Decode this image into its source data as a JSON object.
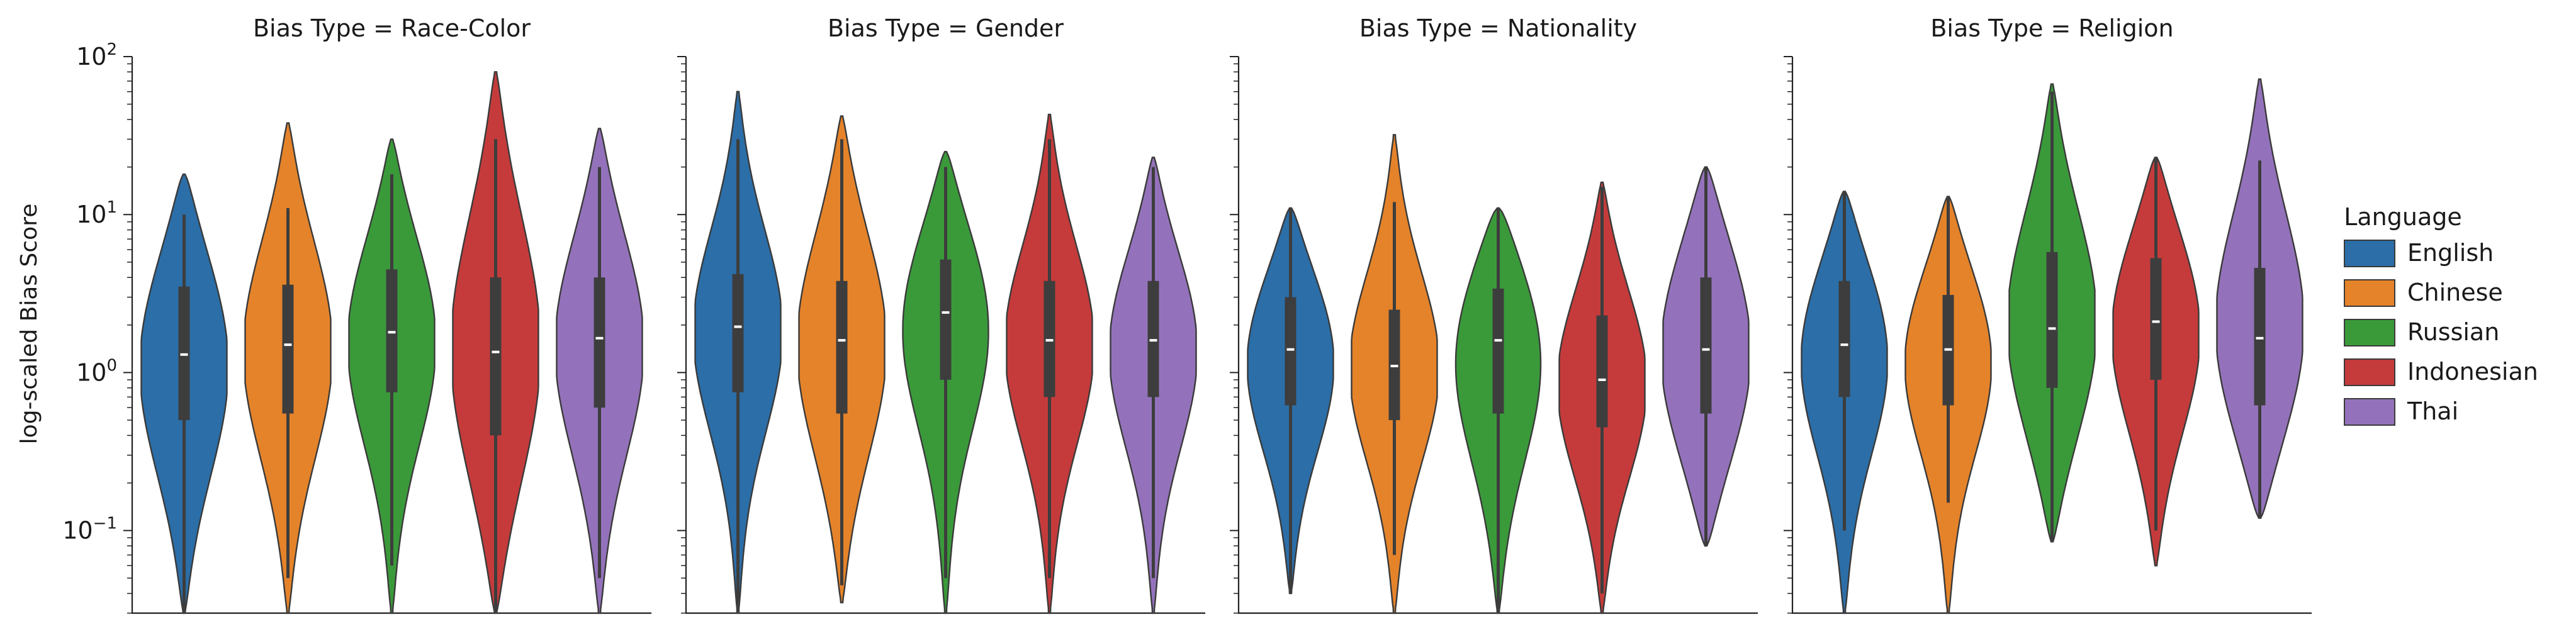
{
  "chart_data": {
    "type": "violin",
    "ylabel": "log-scaled Bias Score",
    "yscale": "log",
    "ylim": [
      0.03,
      100
    ],
    "y_ticks": [
      {
        "value": 100,
        "base": "10",
        "exp": "2"
      },
      {
        "value": 10,
        "base": "10",
        "exp": "1"
      },
      {
        "value": 1,
        "base": "10",
        "exp": "0"
      },
      {
        "value": 0.1,
        "base": "10",
        "exp": "−1"
      }
    ],
    "grid": false,
    "legend": {
      "title": "Language",
      "placement": "right",
      "entries": [
        {
          "name": "English",
          "color": "#2b6ea8"
        },
        {
          "name": "Chinese",
          "color": "#e5832a"
        },
        {
          "name": "Russian",
          "color": "#3a9a3a"
        },
        {
          "name": "Indonesian",
          "color": "#c53b3b"
        },
        {
          "name": "Thai",
          "color": "#9472bb"
        }
      ]
    },
    "panels": [
      {
        "title": "Bias Type = Race-Color",
        "series": [
          {
            "name": "English",
            "min": 0.03,
            "max": 18,
            "q1": 0.5,
            "median": 1.3,
            "q3": 3.5,
            "whisker_low": 0.03,
            "whisker_high": 10
          },
          {
            "name": "Chinese",
            "min": 0.03,
            "max": 38,
            "q1": 0.55,
            "median": 1.5,
            "q3": 3.6,
            "whisker_low": 0.05,
            "whisker_high": 11
          },
          {
            "name": "Russian",
            "min": 0.03,
            "max": 30,
            "q1": 0.75,
            "median": 1.8,
            "q3": 4.5,
            "whisker_low": 0.06,
            "whisker_high": 18
          },
          {
            "name": "Indonesian",
            "min": 0.03,
            "max": 80,
            "q1": 0.4,
            "median": 1.35,
            "q3": 4.0,
            "whisker_low": 0.03,
            "whisker_high": 30
          },
          {
            "name": "Thai",
            "min": 0.03,
            "max": 35,
            "q1": 0.6,
            "median": 1.65,
            "q3": 4.0,
            "whisker_low": 0.05,
            "whisker_high": 20
          }
        ]
      },
      {
        "title": "Bias Type = Gender",
        "series": [
          {
            "name": "English",
            "min": 0.03,
            "max": 60,
            "q1": 0.75,
            "median": 1.95,
            "q3": 4.2,
            "whisker_low": 0.03,
            "whisker_high": 30
          },
          {
            "name": "Chinese",
            "min": 0.035,
            "max": 42,
            "q1": 0.55,
            "median": 1.6,
            "q3": 3.8,
            "whisker_low": 0.045,
            "whisker_high": 30
          },
          {
            "name": "Russian",
            "min": 0.03,
            "max": 25,
            "q1": 0.9,
            "median": 2.4,
            "q3": 5.2,
            "whisker_low": 0.05,
            "whisker_high": 20
          },
          {
            "name": "Indonesian",
            "min": 0.03,
            "max": 43,
            "q1": 0.7,
            "median": 1.6,
            "q3": 3.8,
            "whisker_low": 0.05,
            "whisker_high": 30
          },
          {
            "name": "Thai",
            "min": 0.03,
            "max": 23,
            "q1": 0.7,
            "median": 1.6,
            "q3": 3.8,
            "whisker_low": 0.05,
            "whisker_high": 20
          }
        ]
      },
      {
        "title": "Bias Type = Nationality",
        "series": [
          {
            "name": "English",
            "min": 0.04,
            "max": 11,
            "q1": 0.62,
            "median": 1.4,
            "q3": 3.0,
            "whisker_low": 0.04,
            "whisker_high": 11
          },
          {
            "name": "Chinese",
            "min": 0.03,
            "max": 32,
            "q1": 0.5,
            "median": 1.1,
            "q3": 2.5,
            "whisker_low": 0.07,
            "whisker_high": 12
          },
          {
            "name": "Russian",
            "min": 0.03,
            "max": 11,
            "q1": 0.55,
            "median": 1.6,
            "q3": 3.4,
            "whisker_low": 0.03,
            "whisker_high": 11
          },
          {
            "name": "Indonesian",
            "min": 0.03,
            "max": 16,
            "q1": 0.45,
            "median": 0.9,
            "q3": 2.3,
            "whisker_low": 0.04,
            "whisker_high": 15
          },
          {
            "name": "Thai",
            "min": 0.08,
            "max": 20,
            "q1": 0.55,
            "median": 1.4,
            "q3": 4.0,
            "whisker_low": 0.08,
            "whisker_high": 20
          }
        ]
      },
      {
        "title": "Bias Type = Religion",
        "series": [
          {
            "name": "English",
            "min": 0.03,
            "max": 14,
            "q1": 0.7,
            "median": 1.5,
            "q3": 3.8,
            "whisker_low": 0.1,
            "whisker_high": 14
          },
          {
            "name": "Chinese",
            "min": 0.03,
            "max": 13,
            "q1": 0.62,
            "median": 1.4,
            "q3": 3.1,
            "whisker_low": 0.15,
            "whisker_high": 13
          },
          {
            "name": "Russian",
            "min": 0.085,
            "max": 67,
            "q1": 0.8,
            "median": 1.9,
            "q3": 5.8,
            "whisker_low": 0.085,
            "whisker_high": 60
          },
          {
            "name": "Indonesian",
            "min": 0.06,
            "max": 23,
            "q1": 0.9,
            "median": 2.1,
            "q3": 5.3,
            "whisker_low": 0.1,
            "whisker_high": 23
          },
          {
            "name": "Thai",
            "min": 0.12,
            "max": 72,
            "q1": 0.62,
            "median": 1.65,
            "q3": 4.6,
            "whisker_low": 0.12,
            "whisker_high": 22
          }
        ]
      }
    ]
  }
}
